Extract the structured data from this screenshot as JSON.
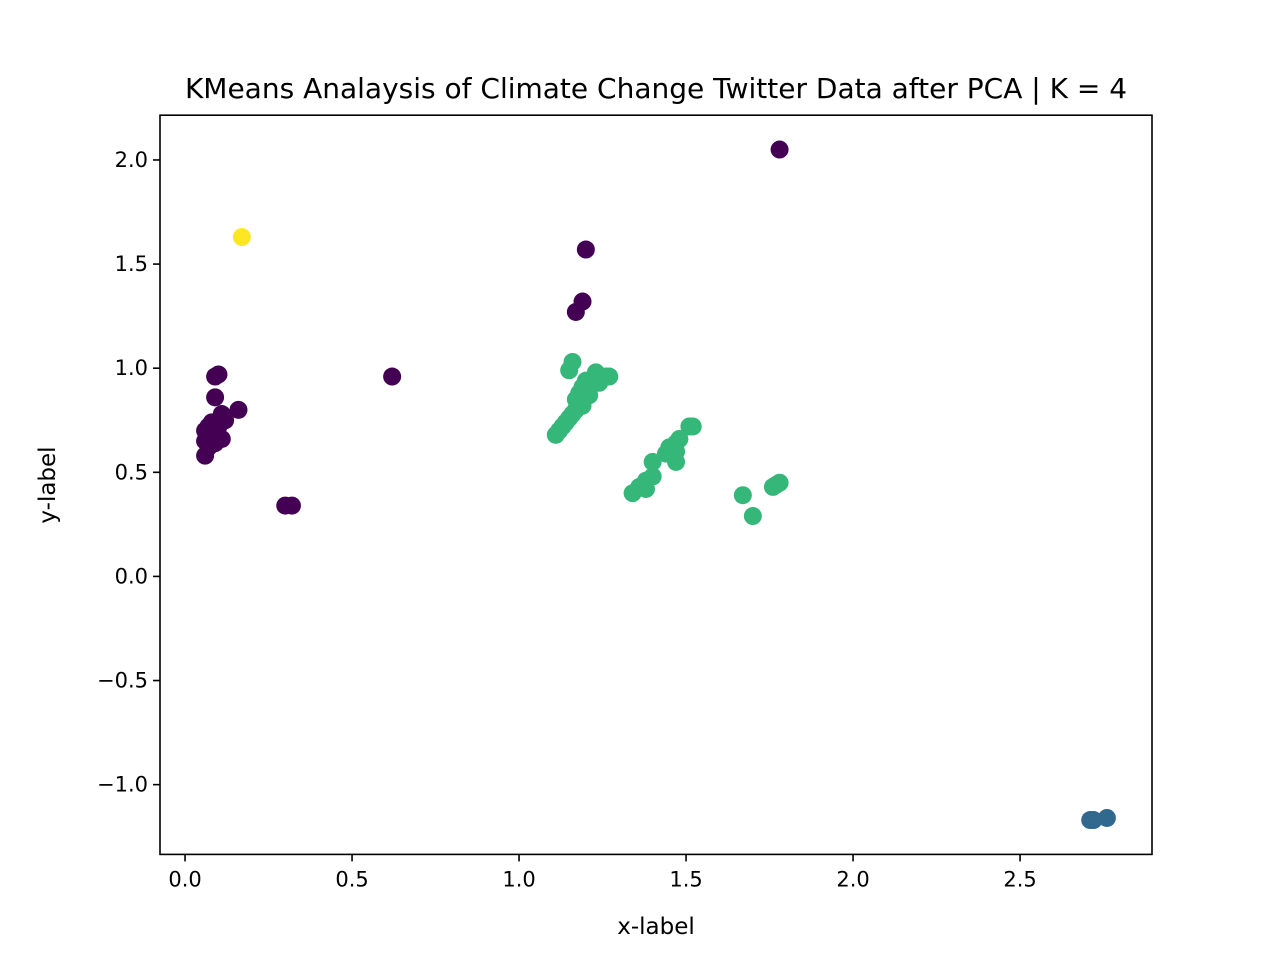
{
  "chart_data": {
    "type": "scatter",
    "title": "KMeans Analaysis of Climate Change Twitter Data after PCA | K = 4",
    "xlabel": "x-label",
    "ylabel": "y-label",
    "xlim": [
      -0.075,
      2.895
    ],
    "ylim": [
      -1.335,
      2.215
    ],
    "x_ticks": [
      0.0,
      0.5,
      1.0,
      1.5,
      2.0,
      2.5
    ],
    "x_tick_labels": [
      "0.0",
      "0.5",
      "1.0",
      "1.5",
      "2.0",
      "2.5"
    ],
    "y_ticks": [
      -1.0,
      -0.5,
      0.0,
      0.5,
      1.0,
      1.5,
      2.0
    ],
    "y_tick_labels": [
      "−1.0",
      "−0.5",
      "0.0",
      "0.5",
      "1.0",
      "1.5",
      "2.0"
    ],
    "grid": false,
    "legend": "none",
    "clusters": [
      {
        "color": "#440154",
        "points": [
          [
            1.78,
            2.05
          ],
          [
            1.2,
            1.57
          ],
          [
            1.19,
            1.32
          ],
          [
            1.17,
            1.27
          ],
          [
            0.62,
            0.96
          ],
          [
            0.1,
            0.97
          ],
          [
            0.09,
            0.96
          ],
          [
            0.09,
            0.86
          ],
          [
            0.16,
            0.8
          ],
          [
            0.11,
            0.78
          ],
          [
            0.12,
            0.75
          ],
          [
            0.08,
            0.74
          ],
          [
            0.07,
            0.72
          ],
          [
            0.1,
            0.72
          ],
          [
            0.06,
            0.7
          ],
          [
            0.09,
            0.69
          ],
          [
            0.07,
            0.67
          ],
          [
            0.11,
            0.66
          ],
          [
            0.06,
            0.65
          ],
          [
            0.09,
            0.64
          ],
          [
            0.07,
            0.62
          ],
          [
            0.06,
            0.58
          ],
          [
            0.3,
            0.34
          ],
          [
            0.32,
            0.34
          ]
        ]
      },
      {
        "color": "#31688e",
        "points": [
          [
            2.72,
            -1.17
          ],
          [
            2.71,
            -1.17
          ],
          [
            2.76,
            -1.16
          ]
        ]
      },
      {
        "color": "#35b779",
        "points": [
          [
            1.16,
            1.03
          ],
          [
            1.15,
            0.99
          ],
          [
            1.23,
            0.98
          ],
          [
            1.26,
            0.96
          ],
          [
            1.27,
            0.96
          ],
          [
            1.24,
            0.93
          ],
          [
            1.2,
            0.94
          ],
          [
            1.19,
            0.91
          ],
          [
            1.18,
            0.88
          ],
          [
            1.21,
            0.87
          ],
          [
            1.17,
            0.85
          ],
          [
            1.19,
            0.82
          ],
          [
            1.17,
            0.8
          ],
          [
            1.16,
            0.78
          ],
          [
            1.15,
            0.76
          ],
          [
            1.14,
            0.74
          ],
          [
            1.13,
            0.72
          ],
          [
            1.12,
            0.7
          ],
          [
            1.11,
            0.68
          ],
          [
            1.51,
            0.72
          ],
          [
            1.52,
            0.72
          ],
          [
            1.48,
            0.66
          ],
          [
            1.47,
            0.64
          ],
          [
            1.45,
            0.62
          ],
          [
            1.47,
            0.6
          ],
          [
            1.44,
            0.59
          ],
          [
            1.47,
            0.55
          ],
          [
            1.4,
            0.55
          ],
          [
            1.4,
            0.48
          ],
          [
            1.38,
            0.46
          ],
          [
            1.36,
            0.43
          ],
          [
            1.38,
            0.42
          ],
          [
            1.34,
            0.4
          ],
          [
            1.78,
            0.45
          ],
          [
            1.77,
            0.44
          ],
          [
            1.76,
            0.43
          ],
          [
            1.67,
            0.39
          ],
          [
            1.7,
            0.29
          ]
        ]
      },
      {
        "color": "#fde725",
        "points": [
          [
            0.17,
            1.63
          ]
        ]
      }
    ]
  }
}
